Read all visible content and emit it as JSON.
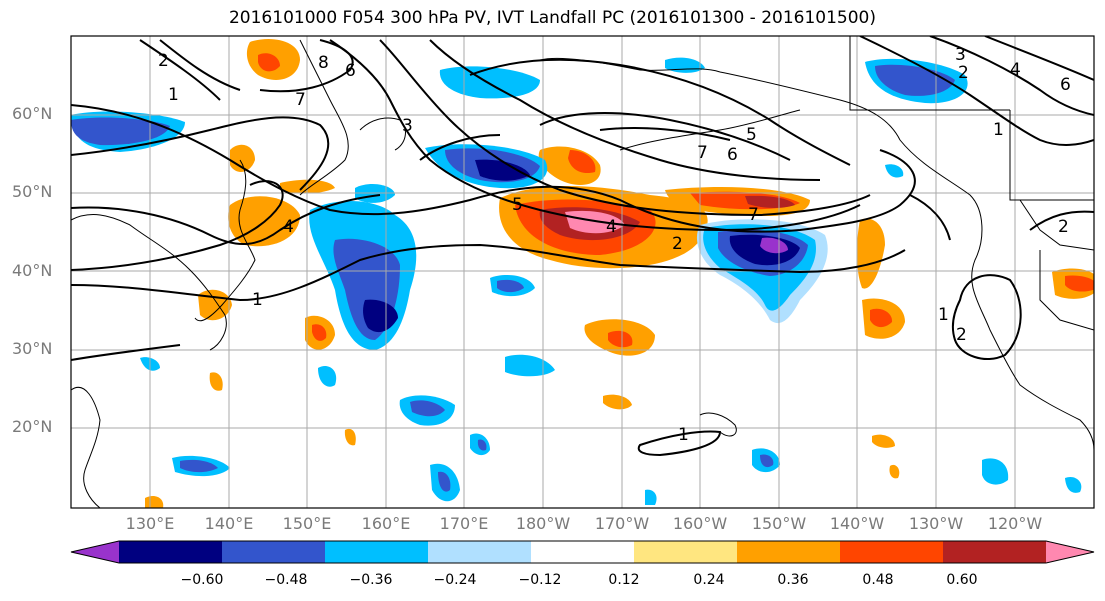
{
  "title": "2016101000 F054 300 hPa PV, IVT Landfall PC (2016101300 - 2016101500)",
  "axes": {
    "lat_labels": [
      "60°N",
      "50°N",
      "40°N",
      "30°N",
      "20°N"
    ],
    "lon_labels": [
      "130°E",
      "140°E",
      "150°E",
      "160°E",
      "170°E",
      "180°W",
      "170°W",
      "160°W",
      "150°W",
      "140°W",
      "130°W",
      "120°W"
    ]
  },
  "contour_labels": [
    "2",
    "1",
    "8",
    "6",
    "7",
    "5",
    "4",
    "3",
    "2",
    "6",
    "7",
    "3",
    "2",
    "4",
    "6",
    "1",
    "5",
    "4",
    "7",
    "2",
    "1",
    "1",
    "2",
    "1"
  ],
  "colorbar": {
    "tick_labels": [
      "−0.60",
      "−0.48",
      "−0.36",
      "−0.24",
      "−0.12",
      "0.12",
      "0.24",
      "0.36",
      "0.48",
      "0.60"
    ],
    "colors": [
      "#9933cc",
      "#000080",
      "#3355cc",
      "#00bfff",
      "#b0e0ff",
      "#ffffff",
      "#ffe680",
      "#ffa000",
      "#ff4500",
      "#b22222",
      "#ff88b0"
    ]
  },
  "palette": {
    "land_outline": "#000000",
    "grid": "#aaaaaa",
    "contour": "#000000"
  }
}
